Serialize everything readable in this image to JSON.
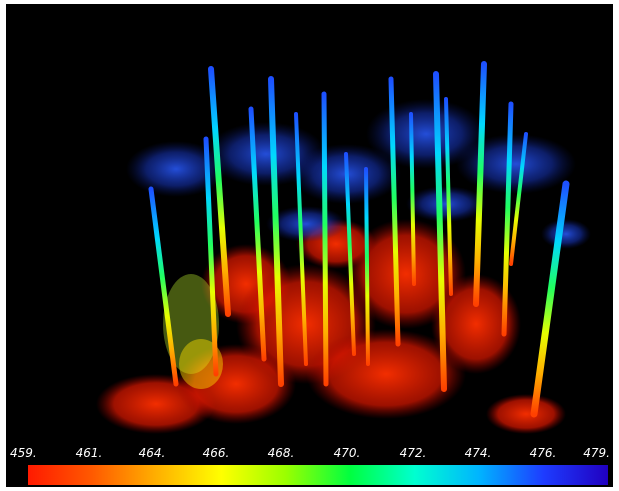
{
  "image": {
    "subject": "lidar-point-cloud-forest",
    "background_color": "#000000"
  },
  "colorbar": {
    "tick_labels": [
      "459.",
      "461.",
      "464.",
      "466.",
      "468.",
      "470.",
      "472.",
      "474.",
      "476.",
      "479."
    ],
    "colors": [
      "#ff1a00",
      "#ff5a00",
      "#ffb000",
      "#ffff00",
      "#9aff00",
      "#00ff40",
      "#00ffd0",
      "#00b4ff",
      "#1e3cff",
      "#2000c0"
    ]
  }
}
